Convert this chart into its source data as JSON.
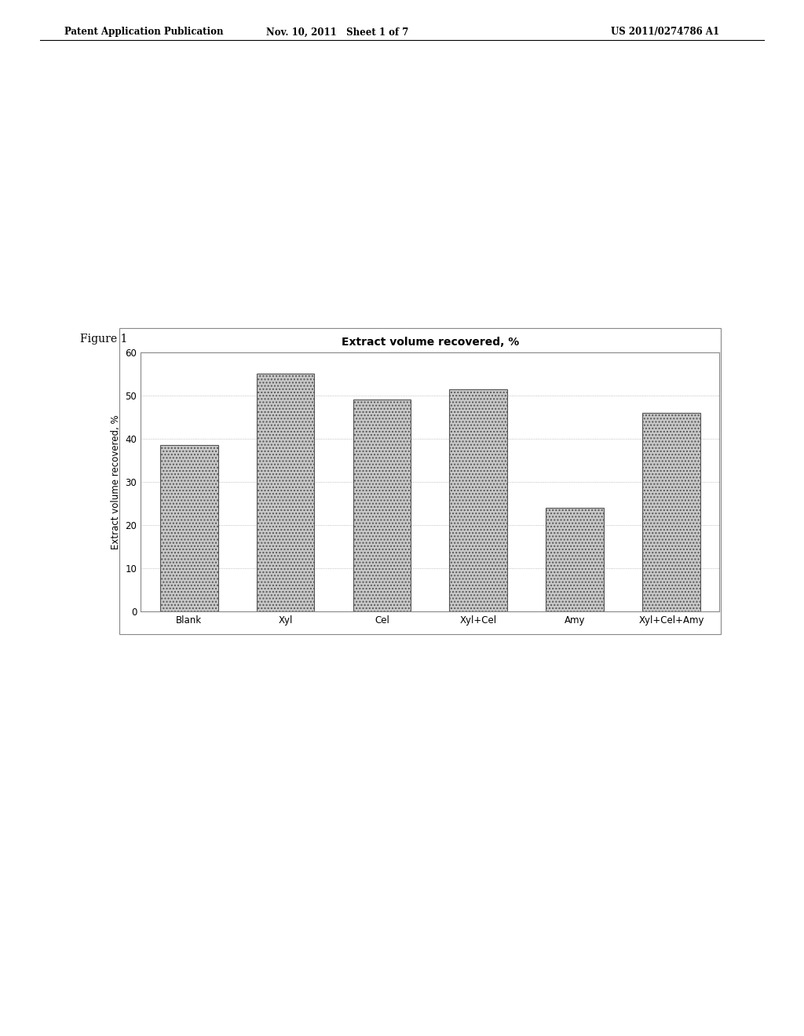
{
  "title": "Extract volume recovered, %",
  "ylabel": "Extract volume recovered, %",
  "categories": [
    "Blank",
    "Xyl",
    "Cel",
    "Xyl+Cel",
    "Amy",
    "Xyl+Cel+Amy"
  ],
  "values": [
    38.5,
    55.0,
    49.0,
    51.5,
    24.0,
    46.0
  ],
  "ylim": [
    0,
    60
  ],
  "yticks": [
    0,
    10,
    20,
    30,
    40,
    50,
    60
  ],
  "bar_color": "#c8c8c8",
  "bar_edgecolor": "#555555",
  "bar_hatch": "....",
  "background_color": "#ffffff",
  "chart_bg": "#ffffff",
  "title_fontsize": 10,
  "ylabel_fontsize": 8.5,
  "xlabel_fontsize": 8.5,
  "tick_fontsize": 8.5,
  "figure_label": "Figure 1",
  "header_left": "Patent Application Publication",
  "header_center": "Nov. 10, 2011   Sheet 1 of 7",
  "header_right": "US 2011/0274786 A1"
}
